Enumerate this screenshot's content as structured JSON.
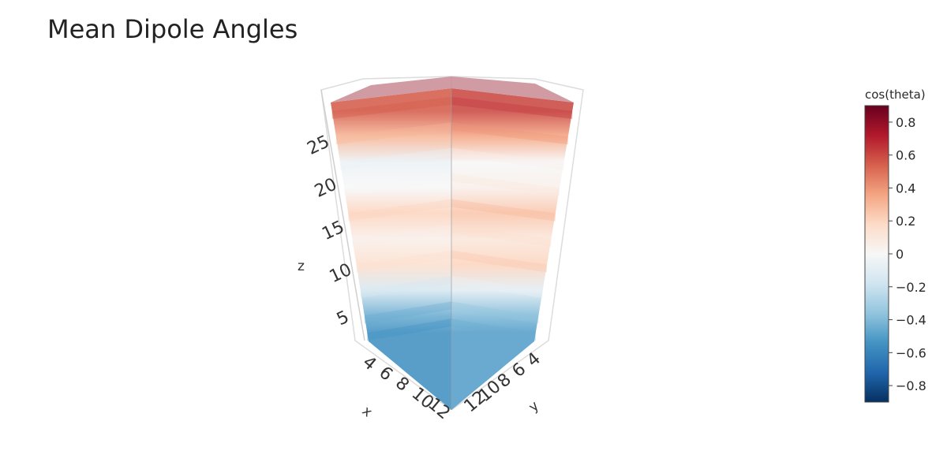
{
  "chart_data": {
    "type": "volume",
    "title": "Mean Dipole Angles",
    "colorscale": "RdBu_r",
    "x": {
      "label": "x",
      "ticks": [
        4,
        6,
        8,
        10,
        12
      ],
      "range": [
        3,
        14
      ]
    },
    "y": {
      "label": "y",
      "ticks": [
        4,
        6,
        8,
        10,
        12
      ],
      "range": [
        3,
        14
      ]
    },
    "z": {
      "label": "z",
      "ticks": [
        5,
        10,
        15,
        20,
        25
      ],
      "range": [
        2,
        30
      ]
    },
    "colorbar": {
      "title": "cos(theta)",
      "range": [
        -0.9,
        0.9
      ],
      "ticks": [
        0.8,
        0.6,
        0.4,
        0.2,
        0,
        -0.2,
        -0.4,
        -0.6,
        -0.8
      ],
      "tick_labels": [
        "0.8",
        "0.6",
        "0.4",
        "0.2",
        "0",
        "−0.2",
        "−0.4",
        "−0.6",
        "−0.8"
      ]
    },
    "z_profile": [
      {
        "z": 3,
        "v": -0.55
      },
      {
        "z": 5,
        "v": -0.45
      },
      {
        "z": 8,
        "v": -0.15
      },
      {
        "z": 11,
        "v": 0.15
      },
      {
        "z": 14,
        "v": 0.05
      },
      {
        "z": 17,
        "v": 0.2
      },
      {
        "z": 20,
        "v": 0.0
      },
      {
        "z": 23,
        "v": -0.05
      },
      {
        "z": 26,
        "v": 0.3
      },
      {
        "z": 29,
        "v": 0.55
      }
    ]
  }
}
